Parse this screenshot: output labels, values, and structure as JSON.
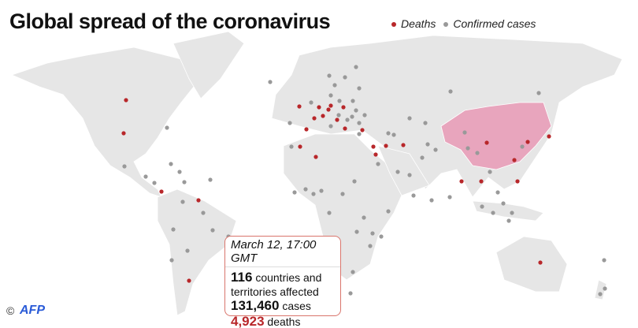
{
  "title": "Global spread of the coronavirus",
  "legend": {
    "deaths": "Deaths",
    "confirmed": "Confirmed cases"
  },
  "colors": {
    "deaths": "#b8272a",
    "confirmed": "#999999",
    "land": "#e6e6e6",
    "china": "#e8a5bd"
  },
  "info": {
    "date": "March 12, 17:00 GMT",
    "countries_num": "116",
    "countries_text": " countries and",
    "countries_text2": "territories affected",
    "cases_num": "131,460",
    "cases_text": " cases",
    "deaths_num": "4,923",
    "deaths_text": " deaths"
  },
  "credit": {
    "copyright": "©",
    "logo": "AFP"
  }
}
